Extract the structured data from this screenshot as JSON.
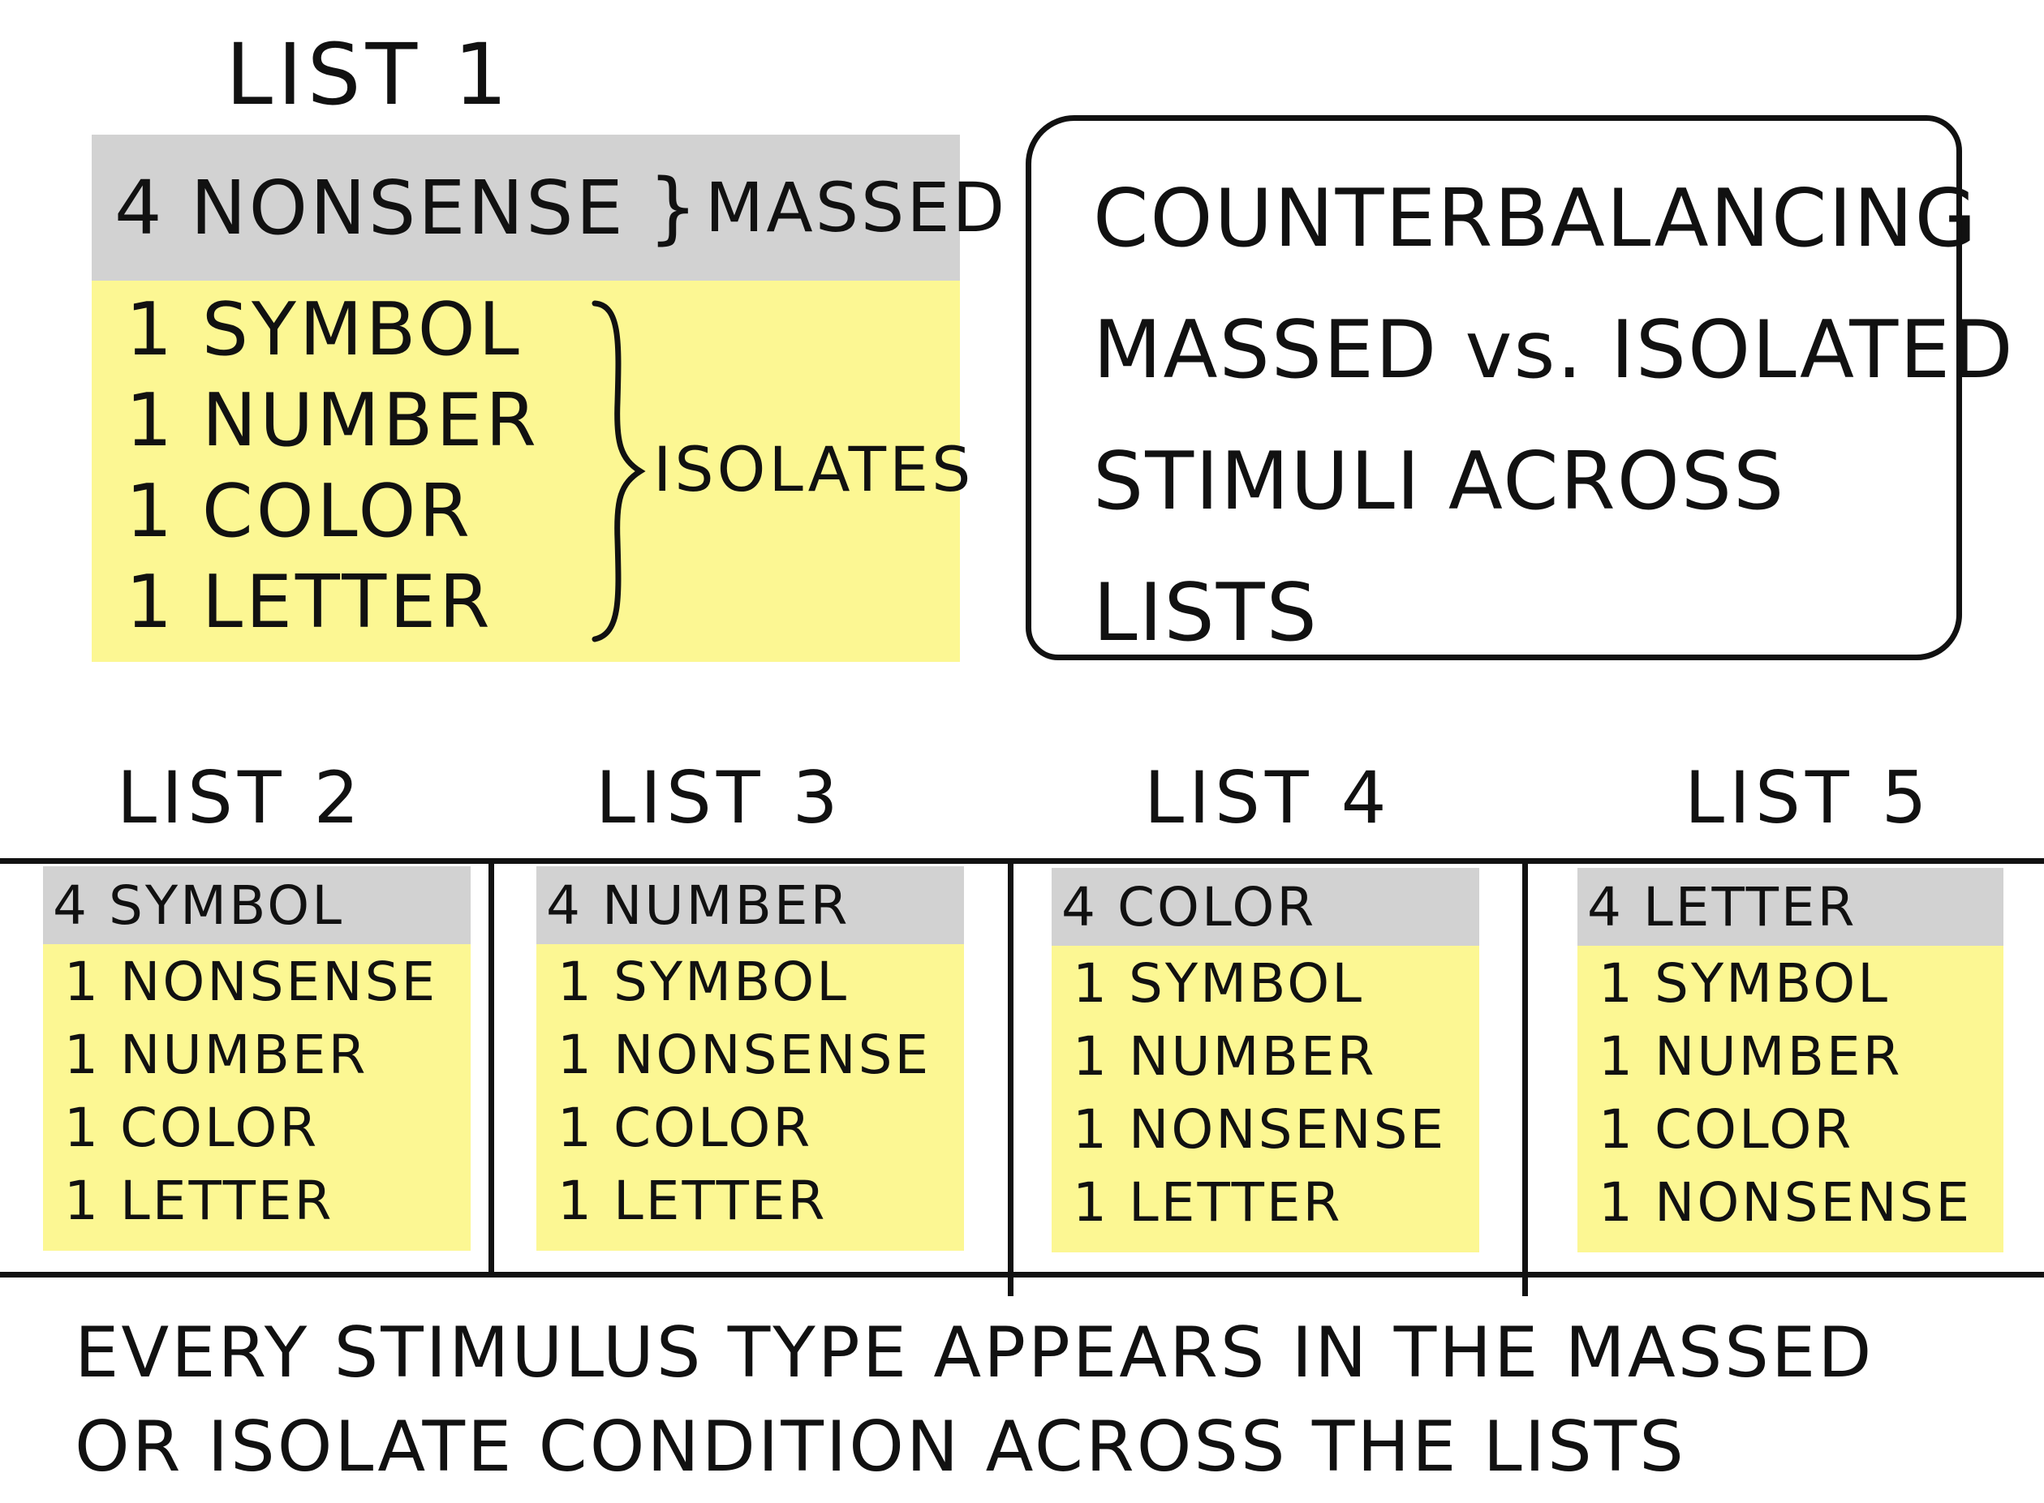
{
  "list1": {
    "title": "LIST 1",
    "header": "4 NONSENSE",
    "massed_label": "MASSED",
    "items": [
      "1 SYMBOL",
      "1 NUMBER",
      "1 COLOR",
      "1 LETTER"
    ],
    "isolates_label": "ISOLATES"
  },
  "note": {
    "lines": [
      "COUNTERBALANCING",
      "MASSED vs. ISOLATED",
      "STIMULI ACROSS",
      "LISTS"
    ]
  },
  "lists": [
    {
      "title": "LIST 2",
      "header": "4 SYMBOL",
      "items": [
        "1 NONSENSE",
        "1 NUMBER",
        "1 COLOR",
        "1 LETTER"
      ]
    },
    {
      "title": "LIST 3",
      "header": "4 NUMBER",
      "items": [
        "1 SYMBOL",
        "1 NONSENSE",
        "1 COLOR",
        "1 LETTER"
      ]
    },
    {
      "title": "LIST 4",
      "header": "4 COLOR",
      "items": [
        "1 SYMBOL",
        "1 NUMBER",
        "1 NONSENSE",
        "1 LETTER"
      ]
    },
    {
      "title": "LIST 5",
      "header": "4 LETTER",
      "items": [
        "1 SYMBOL",
        "1 NUMBER",
        "1 COLOR",
        "1 NONSENSE"
      ]
    }
  ],
  "caption": {
    "lines": [
      "EVERY STIMULUS TYPE APPEARS IN THE MASSED",
      "OR ISOLATE CONDITION ACROSS THE LISTS"
    ]
  },
  "colors": {
    "header_gray": "#d2d2d2",
    "sticky_yellow": "#fcf793",
    "ink": "#111111"
  }
}
